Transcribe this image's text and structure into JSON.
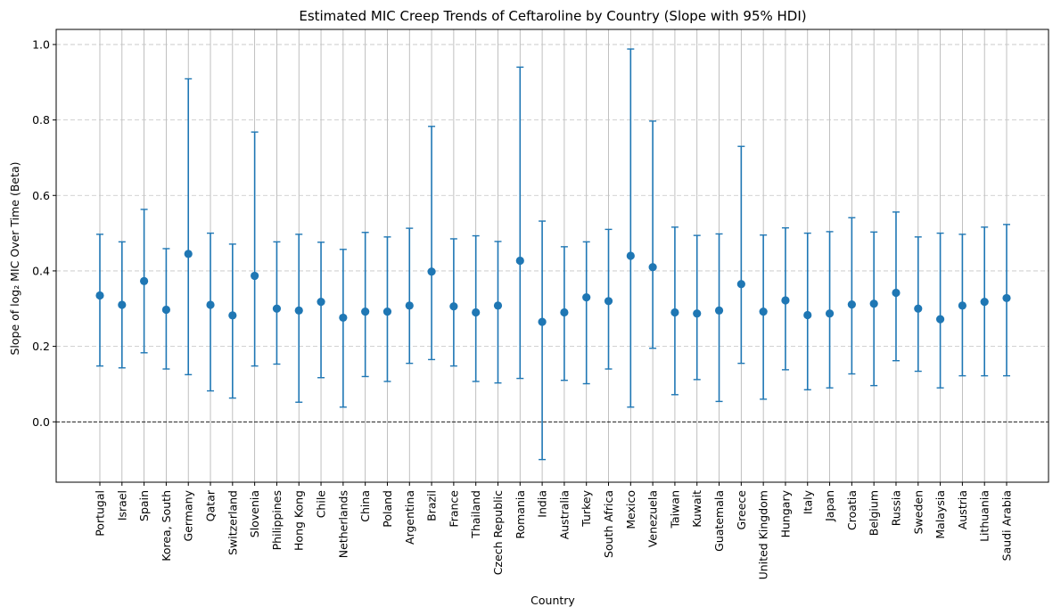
{
  "chart_data": {
    "type": "scatter",
    "title": "Estimated MIC Creep Trends of Ceftaroline by Country (Slope with 95% HDI)",
    "xlabel": "Country",
    "ylabel": "Slope of log₂ MIC Over Time (Beta)",
    "ylim": [
      -0.16,
      1.04
    ],
    "yticks": [
      "0.0",
      "0.2",
      "0.4",
      "0.6",
      "0.8",
      "1.0"
    ],
    "ytick_values": [
      0.0,
      0.2,
      0.4,
      0.6,
      0.8,
      1.0
    ],
    "reference_line": 0.0,
    "grid": "on (x solid, y dashed)",
    "color": "#1f77b4",
    "series": [
      {
        "categories": [
          "Portugal",
          "Israel",
          "Spain",
          "Korea, South",
          "Germany",
          "Qatar",
          "Switzerland",
          "Slovenia",
          "Philippines",
          "Hong Kong",
          "Chile",
          "Netherlands",
          "China",
          "Poland",
          "Argentina",
          "Brazil",
          "France",
          "Thailand",
          "Czech Republic",
          "Romania",
          "India",
          "Australia",
          "Turkey",
          "South Africa",
          "Mexico",
          "Venezuela",
          "Taiwan",
          "Kuwait",
          "Guatemala",
          "Greece",
          "United Kingdom",
          "Hungary",
          "Italy",
          "Japan",
          "Croatia",
          "Belgium",
          "Russia",
          "Sweden",
          "Malaysia",
          "Austria",
          "Lithuania",
          "Saudi Arabia"
        ],
        "values": [
          0.335,
          0.31,
          0.373,
          0.297,
          0.445,
          0.31,
          0.282,
          0.387,
          0.3,
          0.295,
          0.318,
          0.276,
          0.292,
          0.292,
          0.308,
          0.398,
          0.306,
          0.29,
          0.308,
          0.427,
          0.265,
          0.29,
          0.33,
          0.32,
          0.44,
          0.41,
          0.29,
          0.287,
          0.295,
          0.365,
          0.292,
          0.322,
          0.283,
          0.287,
          0.311,
          0.313,
          0.342,
          0.3,
          0.272,
          0.308,
          0.318,
          0.328
        ],
        "lower": [
          0.148,
          0.143,
          0.183,
          0.14,
          0.125,
          0.082,
          0.063,
          0.148,
          0.153,
          0.052,
          0.117,
          0.039,
          0.12,
          0.107,
          0.155,
          0.165,
          0.148,
          0.107,
          0.103,
          0.115,
          -0.1,
          0.11,
          0.101,
          0.14,
          0.039,
          0.195,
          0.072,
          0.112,
          0.054,
          0.155,
          0.06,
          0.138,
          0.085,
          0.09,
          0.127,
          0.096,
          0.162,
          0.134,
          0.09,
          0.122,
          0.122,
          0.122
        ],
        "upper": [
          0.497,
          0.477,
          0.563,
          0.459,
          0.909,
          0.5,
          0.471,
          0.768,
          0.477,
          0.497,
          0.476,
          0.457,
          0.502,
          0.49,
          0.513,
          0.783,
          0.485,
          0.493,
          0.478,
          0.94,
          0.532,
          0.464,
          0.477,
          0.51,
          0.988,
          0.797,
          0.516,
          0.494,
          0.498,
          0.73,
          0.495,
          0.514,
          0.5,
          0.504,
          0.541,
          0.503,
          0.556,
          0.49,
          0.5,
          0.497,
          0.516,
          0.523
        ]
      }
    ]
  }
}
